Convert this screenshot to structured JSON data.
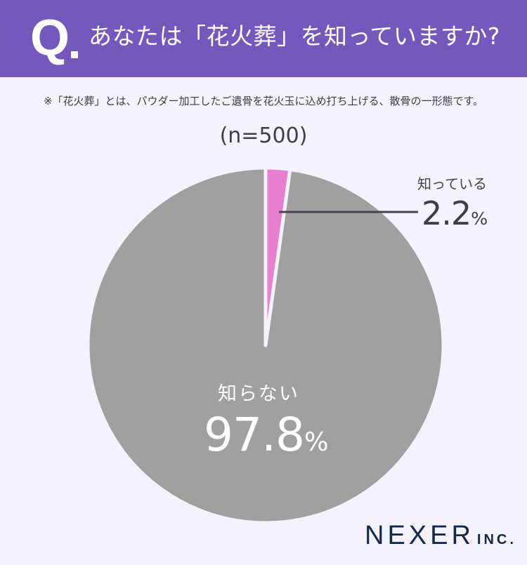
{
  "header": {
    "q_letter": "Q",
    "question": "あなたは「花火葬」を知っていますか?"
  },
  "note": "※「花火葬」とは、パウダー加工したご遺骨を花火玉に込め打ち上げる、散骨の一形態です。",
  "sample_size": "(n=500)",
  "colors": {
    "header_bg": "#7459bd",
    "background": "#f4f3fb",
    "known": "#e77fd1",
    "unknown": "#a0a0a0",
    "leader_line": "#45454b"
  },
  "labels": {
    "known": "知っている",
    "known_value": "2.2",
    "unknown": "知らない",
    "unknown_value": "97.8",
    "percent_sign": "%"
  },
  "brand": {
    "name": "NEXER",
    "suffix": "INC."
  },
  "chart_data": {
    "type": "pie",
    "title": "あなたは「花火葬」を知っていますか?",
    "subtitle": "(n=500)",
    "categories": [
      "知っている",
      "知らない"
    ],
    "values": [
      2.2,
      97.8
    ],
    "unit": "%",
    "colors": [
      "#e77fd1",
      "#a0a0a0"
    ],
    "start_angle": "12 o'clock, clockwise",
    "legend": "none (direct labels)",
    "annotations": [
      "知っている 2.2%",
      "知らない 97.8%"
    ]
  }
}
